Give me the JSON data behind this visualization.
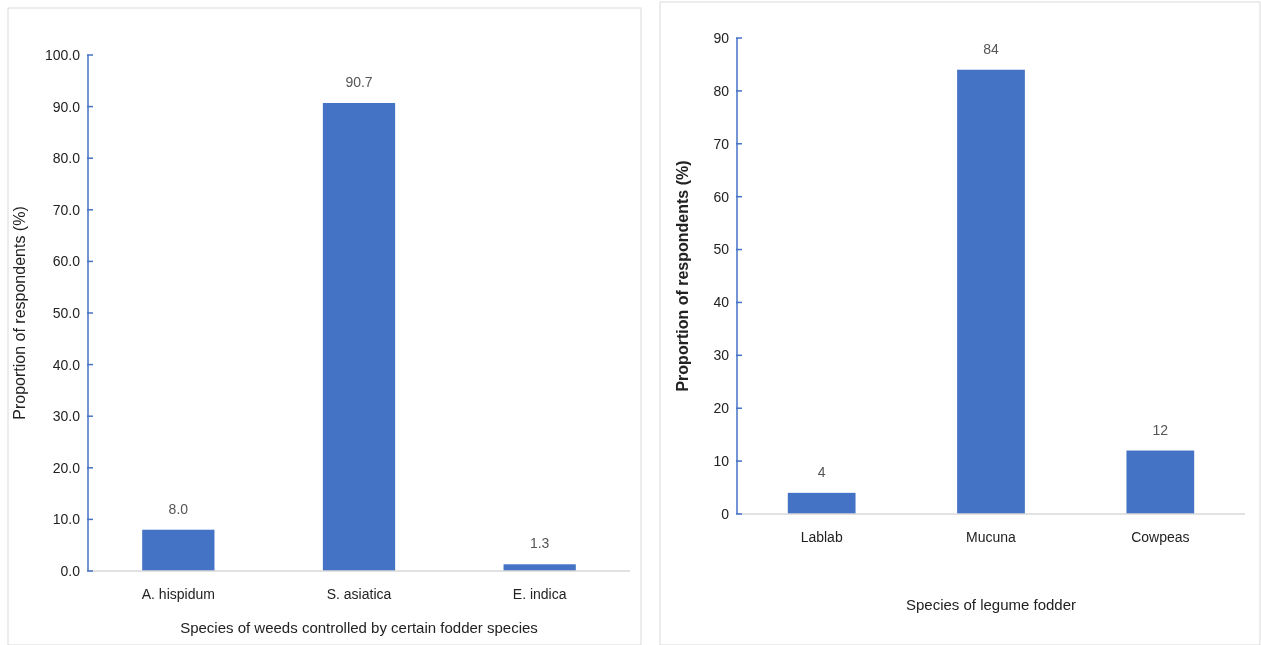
{
  "chart_data": [
    {
      "type": "bar",
      "xlabel": "Species of weeds controlled by certain fodder species",
      "ylabel": "Proportion of respondents (%)",
      "categories": [
        "A. hispidum",
        "S. asiatica",
        "E. indica"
      ],
      "values": [
        8.0,
        90.7,
        1.3
      ],
      "value_labels": [
        "8.0",
        "90.7",
        "1.3"
      ],
      "color": "#4472c4",
      "ylim": [
        0,
        100
      ],
      "yticks": [
        {
          "value": 0,
          "label": "0.0"
        },
        {
          "value": 10,
          "label": "10.0"
        },
        {
          "value": 20,
          "label": "20.0"
        },
        {
          "value": 30,
          "label": "30.0"
        },
        {
          "value": 40,
          "label": "40.0"
        },
        {
          "value": 50,
          "label": "50.0"
        },
        {
          "value": 60,
          "label": "60.0"
        },
        {
          "value": 70,
          "label": "70.0"
        },
        {
          "value": 80,
          "label": "80.0"
        },
        {
          "value": 90,
          "label": "90.0"
        },
        {
          "value": 100,
          "label": "100.0"
        }
      ]
    },
    {
      "type": "bar",
      "xlabel": "Species of legume fodder",
      "ylabel": "Proportion of respondents (%)",
      "categories": [
        "Lablab",
        "Mucuna",
        "Cowpeas"
      ],
      "values": [
        4,
        84,
        12
      ],
      "data_labels": true,
      "color": "#4472c4",
      "ylim": [
        0,
        90
      ],
      "yticks": [
        0,
        10,
        20,
        30,
        40,
        50,
        60,
        70,
        80,
        90
      ]
    }
  ]
}
